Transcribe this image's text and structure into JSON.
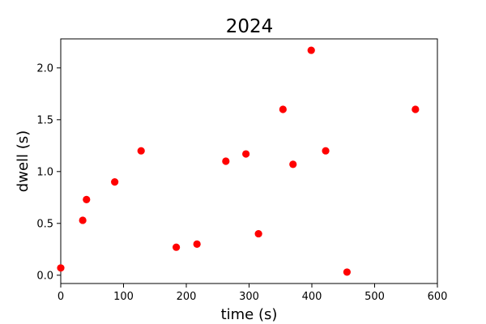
{
  "chart_data": {
    "type": "scatter",
    "title": "2024",
    "xlabel": "time (s)",
    "ylabel": "dwell (s)",
    "xlim": [
      0,
      600
    ],
    "ylim": [
      -0.08,
      2.28
    ],
    "x_ticks": [
      0,
      100,
      200,
      300,
      400,
      500,
      600
    ],
    "x_tick_labels": [
      "0",
      "100",
      "200",
      "300",
      "400",
      "500",
      "600"
    ],
    "y_ticks": [
      0,
      0.5,
      1,
      1.5,
      2
    ],
    "y_tick_labels": [
      "0.0",
      "0.5",
      "1.0",
      "1.5",
      "2.0"
    ],
    "grid": false,
    "legend": "none",
    "marker_color": "#ff0000",
    "series": [
      {
        "x": [
          0,
          35,
          41,
          86,
          128,
          184,
          217,
          263,
          295,
          315,
          354,
          370,
          399,
          422,
          456,
          565
        ],
        "y": [
          0.07,
          0.53,
          0.73,
          0.9,
          1.2,
          0.27,
          0.3,
          1.1,
          1.17,
          0.4,
          1.6,
          1.07,
          2.17,
          1.2,
          0.03,
          1.6
        ]
      }
    ]
  }
}
